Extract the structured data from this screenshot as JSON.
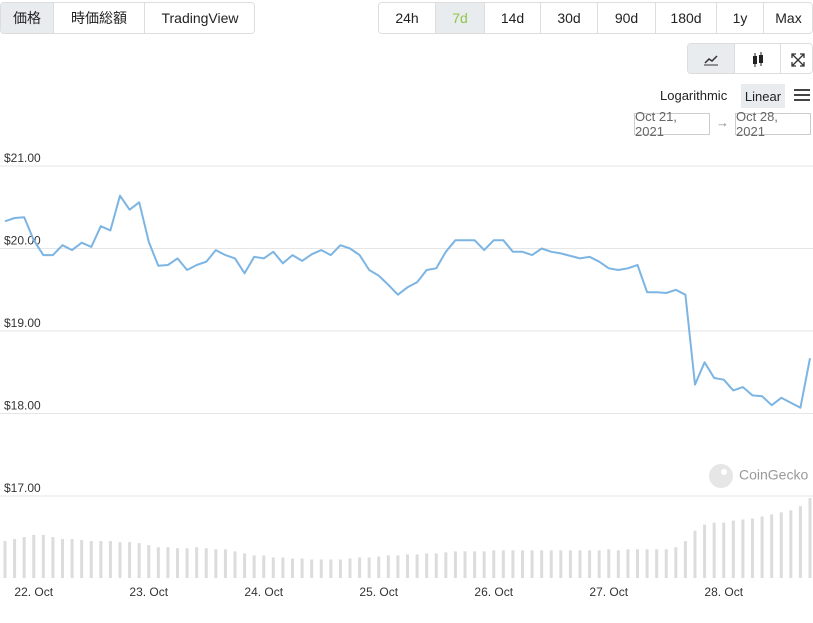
{
  "tabs": [
    "価格",
    "時価総額",
    "TradingView"
  ],
  "selected_tab": 0,
  "ranges": [
    "24h",
    "7d",
    "14d",
    "30d",
    "90d",
    "180d",
    "1y",
    "Max"
  ],
  "selected_range": 1,
  "scale_options": [
    "Logarithmic",
    "Linear"
  ],
  "selected_scale": 1,
  "date_range": [
    "Oct 21, 2021",
    "Oct 28, 2021"
  ],
  "watermark": "CoinGecko",
  "chart_data": {
    "type": "line",
    "categories": [
      null,
      null,
      null,
      "22. Oct",
      null,
      null,
      null,
      null,
      null,
      null,
      null,
      null,
      null,
      null,
      null,
      "23. Oct",
      null,
      null,
      null,
      null,
      null,
      null,
      null,
      null,
      null,
      null,
      null,
      "24. Oct",
      null,
      null,
      null,
      null,
      null,
      null,
      null,
      null,
      null,
      null,
      null,
      "25. Oct",
      null,
      null,
      null,
      null,
      null,
      null,
      null,
      null,
      null,
      null,
      null,
      "26. Oct",
      null,
      null,
      null,
      null,
      null,
      null,
      null,
      null,
      null,
      null,
      null,
      "27. Oct",
      null,
      null,
      null,
      null,
      null,
      null,
      null,
      null,
      null,
      null,
      null,
      "28. Oct",
      null,
      null,
      null,
      null,
      null,
      null,
      null,
      null,
      null
    ],
    "series": [
      {
        "color": "#7cb5e3",
        "values": [
          20.33,
          20.37,
          20.38,
          20.1,
          19.92,
          19.92,
          20.04,
          19.98,
          20.07,
          20.02,
          20.27,
          20.22,
          20.64,
          20.47,
          20.56,
          20.08,
          19.79,
          19.8,
          19.88,
          19.74,
          19.8,
          19.84,
          19.98,
          19.92,
          19.88,
          19.7,
          19.9,
          19.88,
          19.96,
          19.82,
          19.92,
          19.85,
          19.93,
          19.98,
          19.92,
          20.04,
          20.0,
          19.92,
          19.74,
          19.67,
          19.56,
          19.44,
          19.53,
          19.59,
          19.74,
          19.76,
          19.96,
          20.1,
          20.1,
          20.1,
          19.98,
          20.1,
          20.1,
          19.96,
          19.96,
          19.92,
          20.0,
          19.96,
          19.94,
          19.91,
          19.88,
          19.9,
          19.84,
          19.76,
          19.74,
          19.76,
          19.8,
          19.47,
          19.47,
          19.46,
          19.5,
          19.44,
          18.35,
          18.62,
          18.43,
          18.41,
          18.28,
          18.32,
          18.22,
          18.21,
          18.1,
          18.19,
          18.13,
          18.07,
          18.67
        ]
      }
    ],
    "volume": {
      "color": "#dcdcdc",
      "values": [
        36,
        38,
        40,
        42,
        42,
        40,
        38,
        38,
        37,
        36,
        36,
        36,
        35,
        35,
        34,
        32,
        30,
        30,
        29,
        29,
        30,
        29,
        28,
        28,
        26,
        24,
        22,
        22,
        20,
        20,
        19,
        19,
        18,
        18,
        18,
        18,
        19,
        20,
        20,
        21,
        22,
        22,
        23,
        23,
        24,
        24,
        25,
        26,
        26,
        26,
        26,
        27,
        27,
        27,
        27,
        27,
        27,
        27,
        27,
        27,
        27,
        27,
        27,
        28,
        27,
        28,
        28,
        28,
        28,
        28,
        30,
        36,
        46,
        52,
        54,
        54,
        56,
        57,
        58,
        60,
        62,
        64,
        66,
        70,
        78
      ]
    },
    "ylim": [
      17,
      21
    ],
    "yticks": [
      {
        "value": 21,
        "label": "$21.00"
      },
      {
        "value": 20,
        "label": "$20.00"
      },
      {
        "value": 19,
        "label": "$19.00"
      },
      {
        "value": 18,
        "label": "$18.00"
      },
      {
        "value": 17,
        "label": "$17.00"
      }
    ],
    "grid": true
  }
}
